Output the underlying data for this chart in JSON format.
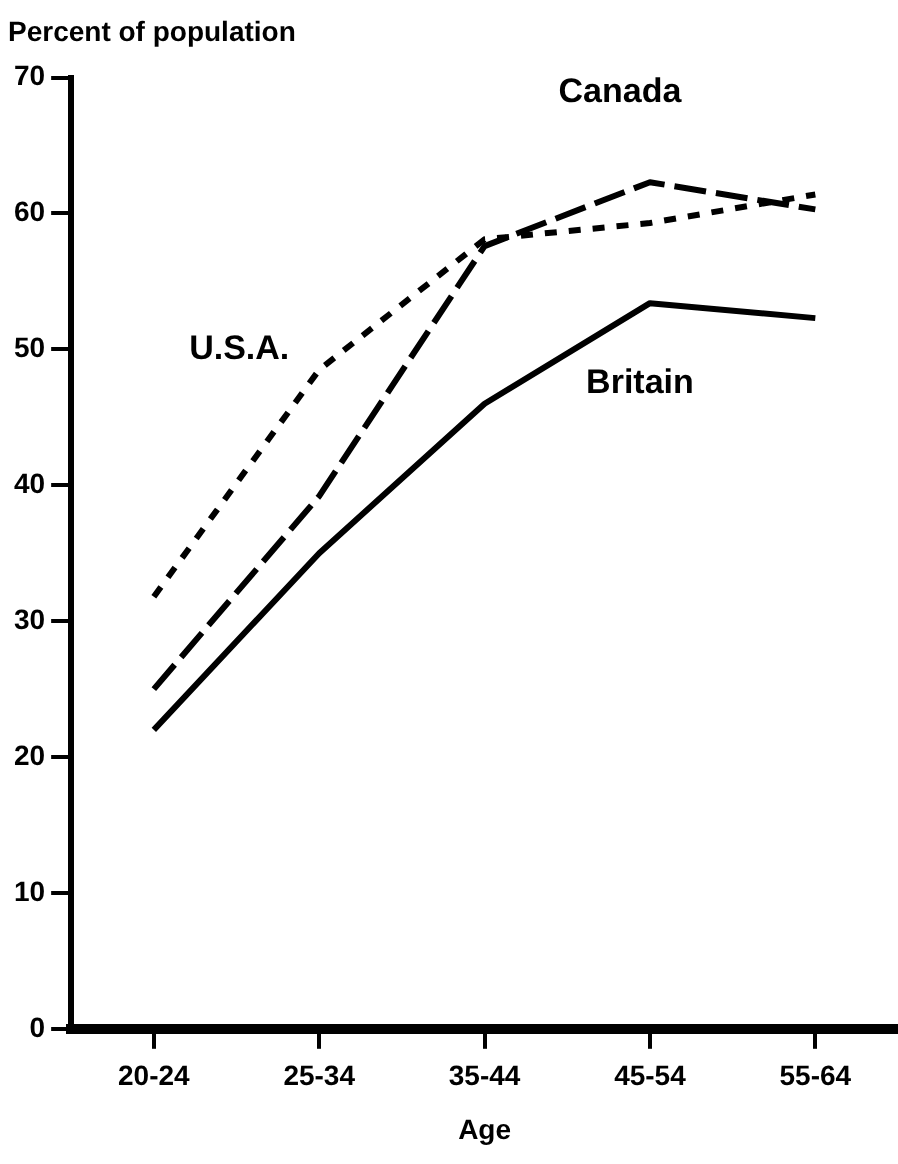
{
  "chart_data": {
    "type": "line",
    "title": "Percent of population",
    "xlabel": "Age",
    "categories": [
      "20-24",
      "25-34",
      "35-44",
      "45-54",
      "55-64"
    ],
    "series": [
      {
        "name": "Britain",
        "color": "#000000",
        "line_style": "solid",
        "values": [
          22,
          35,
          46,
          53.4,
          52.3
        ]
      },
      {
        "name": "Canada",
        "color": "#000000",
        "line_style": "dashed",
        "values": [
          25,
          39.2,
          57.6,
          62.3,
          60.3
        ]
      },
      {
        "name": "U.S.A.",
        "color": "#000000",
        "line_style": "dotted",
        "values": [
          31.8,
          48.5,
          58.1,
          59.3,
          61.4
        ]
      }
    ],
    "ylim": [
      0,
      70
    ],
    "yticks": [
      0,
      10,
      20,
      30,
      40,
      50,
      60,
      70
    ],
    "grid": false,
    "legend": false,
    "marker": "none"
  }
}
